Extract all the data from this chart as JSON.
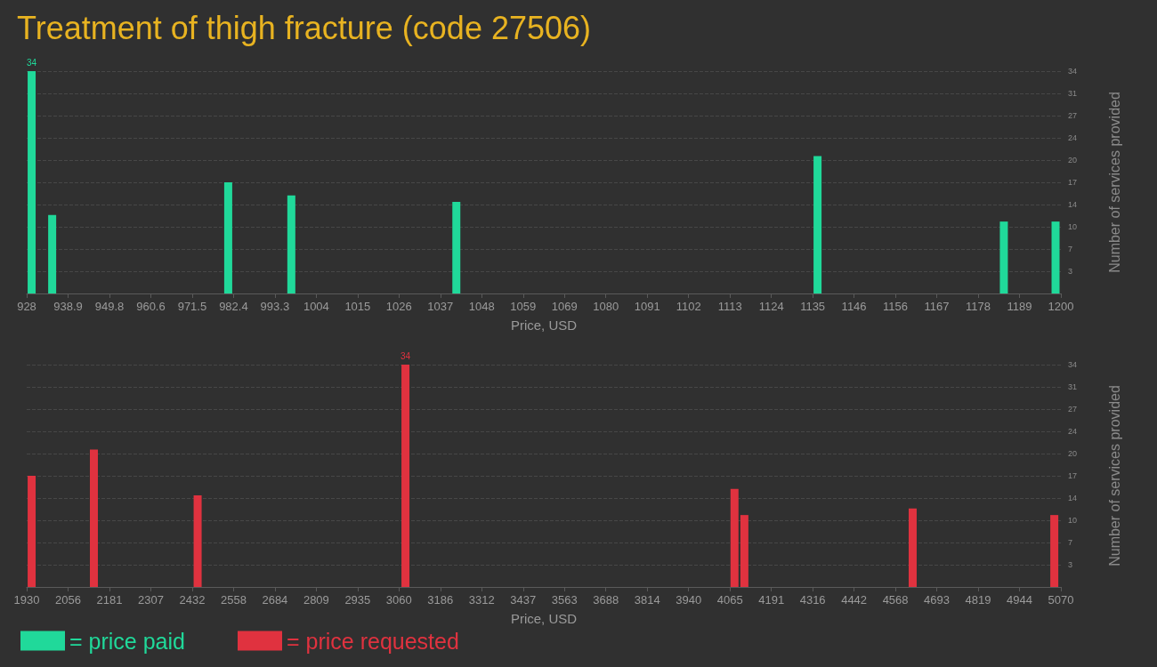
{
  "chart_data": [
    {
      "type": "bar",
      "title": "Treatment of thigh fracture (code 27506)",
      "xlabel": "Price, USD",
      "ylabel": "Number of services provided",
      "x": [
        929.3,
        934.7,
        981,
        997.6,
        1041,
        1136,
        1185,
        1198.6
      ],
      "series": [
        {
          "name": "= price paid",
          "color": "#20d99a",
          "values": [
            34,
            12,
            17,
            15,
            14,
            21,
            11,
            11
          ],
          "value_labels": [
            "34",
            null,
            null,
            null,
            null,
            null,
            null,
            null
          ]
        }
      ],
      "xlim": [
        928,
        1200
      ],
      "xticks": [
        928,
        {
          "value": 938.88,
          "label": "938.9"
        },
        {
          "value": 949.76,
          "label": "949.8"
        },
        {
          "value": 960.64,
          "label": "960.6"
        },
        {
          "value": 971.52,
          "label": "971.5"
        },
        982.4,
        {
          "value": 993.28,
          "label": "993.3"
        },
        {
          "value": 1004.16,
          "label": "1004"
        },
        {
          "value": 1015.04,
          "label": "1015"
        },
        {
          "value": 1025.92,
          "label": "1026"
        },
        {
          "value": 1036.8,
          "label": "1037"
        },
        {
          "value": 1047.68,
          "label": "1048"
        },
        {
          "value": 1058.56,
          "label": "1059"
        },
        {
          "value": 1069.44,
          "label": "1069"
        },
        {
          "value": 1080.32,
          "label": "1080"
        },
        {
          "value": 1091.2,
          "label": "1091"
        },
        {
          "value": 1102.08,
          "label": "1102"
        },
        {
          "value": 1112.96,
          "label": "1113"
        },
        {
          "value": 1123.84,
          "label": "1124"
        },
        {
          "value": 1134.72,
          "label": "1135"
        },
        {
          "value": 1145.6,
          "label": "1146"
        },
        {
          "value": 1156.48,
          "label": "1156"
        },
        {
          "value": 1167.36,
          "label": "1167"
        },
        {
          "value": 1178.24,
          "label": "1178"
        },
        {
          "value": 1189.12,
          "label": "1189"
        },
        1200
      ],
      "ylim": [
        0,
        34
      ],
      "yticks": [
        {
          "value": 3.4,
          "label": "3"
        },
        {
          "value": 6.8,
          "label": "7"
        },
        {
          "value": 10.2,
          "label": "10"
        },
        {
          "value": 13.6,
          "label": "14"
        },
        {
          "value": 17,
          "label": "17"
        },
        {
          "value": 20.4,
          "label": "20"
        },
        {
          "value": 23.8,
          "label": "24"
        },
        {
          "value": 27.2,
          "label": "27"
        },
        {
          "value": 30.6,
          "label": "31"
        },
        {
          "value": 34,
          "label": "34"
        }
      ],
      "grid": "y",
      "legend": "bottom left"
    },
    {
      "type": "bar",
      "xlabel": "Price, USD",
      "ylabel": "Number of services provided",
      "x": [
        1945,
        2134,
        2449,
        3080,
        4079,
        4109,
        4620,
        5050
      ],
      "series": [
        {
          "name": "= price requested",
          "color": "#e0323f",
          "values": [
            17,
            21,
            14,
            34,
            15,
            11,
            12,
            11
          ],
          "value_labels": [
            null,
            null,
            null,
            "34",
            null,
            null,
            null,
            null
          ]
        }
      ],
      "xlim": [
        1930,
        5070
      ],
      "xticks": [
        1930,
        {
          "value": 2055.6,
          "label": "2056"
        },
        {
          "value": 2181.2,
          "label": "2181"
        },
        {
          "value": 2306.8,
          "label": "2307"
        },
        {
          "value": 2432.4,
          "label": "2432"
        },
        2558,
        {
          "value": 2683.6,
          "label": "2684"
        },
        {
          "value": 2809.2,
          "label": "2809"
        },
        {
          "value": 2934.8,
          "label": "2935"
        },
        {
          "value": 3060.4,
          "label": "3060"
        },
        3186,
        {
          "value": 3311.6,
          "label": "3312"
        },
        {
          "value": 3437.2,
          "label": "3437"
        },
        {
          "value": 3562.8,
          "label": "3563"
        },
        {
          "value": 3688.4,
          "label": "3688"
        },
        3814,
        {
          "value": 3939.6,
          "label": "3940"
        },
        {
          "value": 4065.2,
          "label": "4065"
        },
        {
          "value": 4190.8,
          "label": "4191"
        },
        {
          "value": 4316.4,
          "label": "4316"
        },
        4442,
        {
          "value": 4567.6,
          "label": "4568"
        },
        {
          "value": 4693.2,
          "label": "4693"
        },
        {
          "value": 4818.8,
          "label": "4819"
        },
        {
          "value": 4944.4,
          "label": "4944"
        },
        5070
      ],
      "ylim": [
        0,
        34
      ],
      "yticks": [
        {
          "value": 3.4,
          "label": "3"
        },
        {
          "value": 6.8,
          "label": "7"
        },
        {
          "value": 10.2,
          "label": "10"
        },
        {
          "value": 13.6,
          "label": "14"
        },
        {
          "value": 17,
          "label": "17"
        },
        {
          "value": 20.4,
          "label": "20"
        },
        {
          "value": 23.8,
          "label": "24"
        },
        {
          "value": 27.2,
          "label": "27"
        },
        {
          "value": 30.6,
          "label": "31"
        },
        {
          "value": 34,
          "label": "34"
        }
      ],
      "grid": "y",
      "legend": "bottom left"
    }
  ]
}
